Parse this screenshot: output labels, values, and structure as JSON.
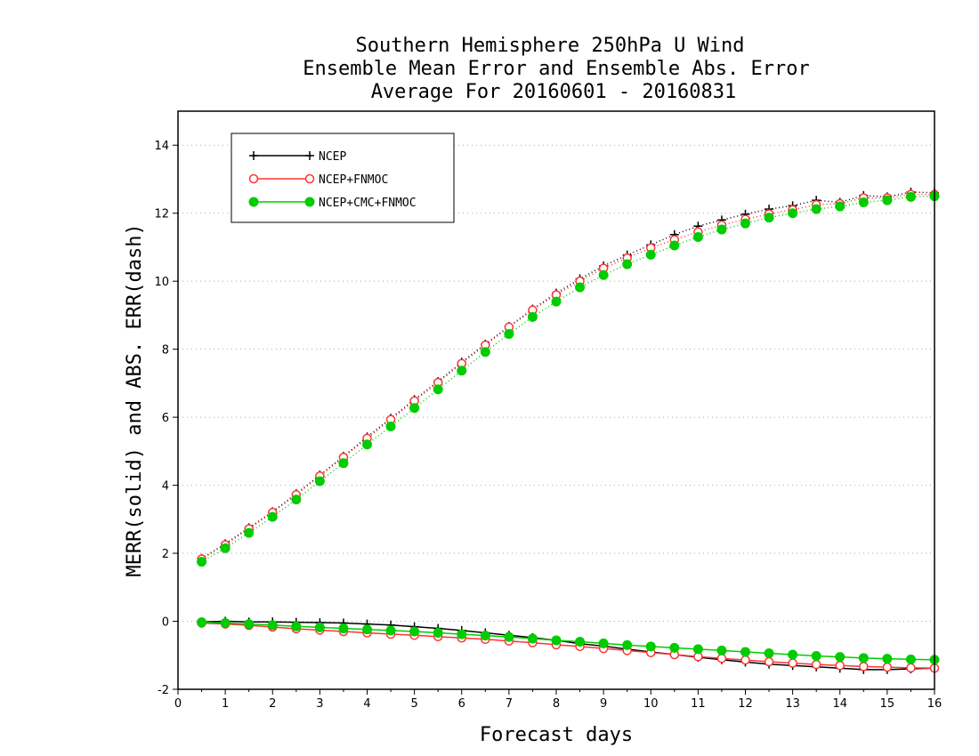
{
  "chart_data": {
    "type": "line",
    "title_lines": [
      "Southern Hemisphere 250hPa U Wind",
      "Ensemble Mean Error and Ensemble Abs. Error",
      "Average For 20160601 - 20160831"
    ],
    "xlabel": "Forecast days",
    "ylabel": "MERR(solid) and ABS. ERR(dash)",
    "xlim": [
      0,
      16
    ],
    "ylim": [
      -2,
      15
    ],
    "x_ticks": [
      "0",
      "1",
      "2",
      "3",
      "4",
      "5",
      "6",
      "7",
      "8",
      "9",
      "10",
      "11",
      "12",
      "13",
      "14",
      "15",
      "16"
    ],
    "y_ticks": [
      "-2",
      "0",
      "2",
      "4",
      "6",
      "8",
      "10",
      "12",
      "14"
    ],
    "grid": "horizontal dotted",
    "legend_placement": "top-left",
    "x": [
      0.5,
      1,
      1.5,
      2,
      2.5,
      3,
      3.5,
      4,
      4.5,
      5,
      5.5,
      6,
      6.5,
      7,
      7.5,
      8,
      8.5,
      9,
      9.5,
      10,
      10.5,
      11,
      11.5,
      12,
      12.5,
      13,
      13.5,
      14,
      14.5,
      15,
      15.5,
      16
    ],
    "series": [
      {
        "name": "NCEP",
        "color": "#000000",
        "marker": "plus",
        "merr": [
          -0.02,
          0.0,
          -0.02,
          -0.02,
          -0.03,
          -0.04,
          -0.05,
          -0.08,
          -0.11,
          -0.16,
          -0.21,
          -0.27,
          -0.34,
          -0.41,
          -0.48,
          -0.56,
          -0.66,
          -0.73,
          -0.82,
          -0.9,
          -0.98,
          -1.06,
          -1.13,
          -1.2,
          -1.26,
          -1.3,
          -1.34,
          -1.38,
          -1.42,
          -1.42,
          -1.4,
          -1.38
        ],
        "abs_err": [
          1.85,
          2.28,
          2.75,
          3.22,
          3.75,
          4.3,
          4.85,
          5.42,
          5.97,
          6.52,
          7.05,
          7.62,
          8.15,
          8.67,
          9.18,
          9.65,
          10.07,
          10.45,
          10.77,
          11.07,
          11.37,
          11.62,
          11.8,
          11.97,
          12.12,
          12.22,
          12.38,
          12.32,
          12.52,
          12.48,
          12.62,
          12.6
        ]
      },
      {
        "name": "NCEP+FNMOC",
        "color": "#ff3333",
        "marker": "open-circle",
        "merr": [
          -0.05,
          -0.08,
          -0.12,
          -0.17,
          -0.22,
          -0.26,
          -0.3,
          -0.34,
          -0.38,
          -0.41,
          -0.45,
          -0.49,
          -0.53,
          -0.58,
          -0.63,
          -0.69,
          -0.74,
          -0.8,
          -0.86,
          -0.92,
          -0.98,
          -1.04,
          -1.09,
          -1.14,
          -1.19,
          -1.23,
          -1.27,
          -1.3,
          -1.33,
          -1.35,
          -1.37,
          -1.38
        ],
        "abs_err": [
          1.83,
          2.25,
          2.72,
          3.2,
          3.72,
          4.27,
          4.82,
          5.38,
          5.93,
          6.48,
          7.02,
          7.58,
          8.12,
          8.65,
          9.15,
          9.6,
          10.0,
          10.38,
          10.68,
          10.98,
          11.22,
          11.45,
          11.65,
          11.82,
          11.98,
          12.1,
          12.25,
          12.28,
          12.45,
          12.45,
          12.55,
          12.55
        ]
      },
      {
        "name": "NCEP+CMC+FNMOC",
        "color": "#00cc00",
        "marker": "filled-circle",
        "merr": [
          -0.03,
          -0.05,
          -0.08,
          -0.11,
          -0.15,
          -0.18,
          -0.21,
          -0.24,
          -0.27,
          -0.3,
          -0.34,
          -0.38,
          -0.42,
          -0.46,
          -0.51,
          -0.56,
          -0.6,
          -0.65,
          -0.7,
          -0.74,
          -0.78,
          -0.82,
          -0.86,
          -0.9,
          -0.94,
          -0.98,
          -1.02,
          -1.05,
          -1.08,
          -1.1,
          -1.12,
          -1.13
        ],
        "abs_err": [
          1.75,
          2.15,
          2.6,
          3.07,
          3.58,
          4.12,
          4.65,
          5.2,
          5.73,
          6.27,
          6.82,
          7.37,
          7.92,
          8.45,
          8.95,
          9.4,
          9.82,
          10.18,
          10.5,
          10.78,
          11.05,
          11.3,
          11.52,
          11.7,
          11.87,
          12.0,
          12.12,
          12.2,
          12.32,
          12.38,
          12.48,
          12.5
        ]
      }
    ]
  }
}
